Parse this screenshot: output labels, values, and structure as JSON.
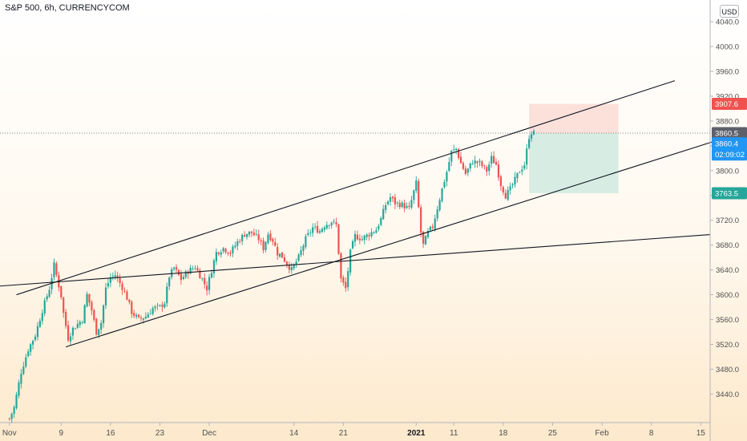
{
  "header": {
    "title": "S&P 500, 6h, CURRENCYCOM",
    "currency_button": "USD"
  },
  "colors": {
    "up": "#26a69a",
    "down": "#ef5350",
    "line": "#131722",
    "axis_text": "#4f4f4f",
    "profit_zone": "#d3ebe1",
    "loss_zone": "#fcdcd6",
    "grid": "#e0e3eb"
  },
  "chart_data": {
    "type": "candlestick",
    "symbol": "S&P 500",
    "interval": "6h",
    "source": "CURRENCYCOM",
    "x_axis": {
      "unit": "bar_index",
      "tick_labels": [
        {
          "bar": 0,
          "label": "Nov"
        },
        {
          "bar": 22,
          "label": "9"
        },
        {
          "bar": 43,
          "label": "16"
        },
        {
          "bar": 64,
          "label": "23"
        },
        {
          "bar": 85,
          "label": "Dec"
        },
        {
          "bar": 121,
          "label": "14"
        },
        {
          "bar": 142,
          "label": "21"
        },
        {
          "bar": 173,
          "label": "2021"
        },
        {
          "bar": 189,
          "label": "11"
        },
        {
          "bar": 210,
          "label": "18"
        },
        {
          "bar": 231,
          "label": "25"
        },
        {
          "bar": 252,
          "label": "Feb"
        },
        {
          "bar": 273,
          "label": "8"
        },
        {
          "bar": 294,
          "label": "15"
        }
      ],
      "range": [
        -4,
        298
      ]
    },
    "y_axis": {
      "range": [
        3394,
        4075
      ],
      "ticks": [
        3440,
        3480,
        3520,
        3560,
        3600,
        3640,
        3680,
        3720,
        3760,
        3800,
        3840,
        3880,
        3920,
        3960,
        4000,
        4040
      ],
      "tick_labels": [
        "3440.0",
        "3480.0",
        "3520.0",
        "3560.0",
        "3600.0",
        "3640.0",
        "3680.0",
        "3720.0",
        "3760.0",
        "3800.0",
        "3840.0",
        "3880.0",
        "3920.0",
        "3960.0",
        "4000.0",
        "4040.0"
      ]
    },
    "price_tags": [
      {
        "label": "3907.6",
        "value": 3907.6,
        "color": "#ef5350"
      },
      {
        "label": "3860.5",
        "value": 3860.5,
        "color": "#5d606b"
      },
      {
        "label": "3860.4",
        "value": 3844,
        "color": "#2196f3"
      },
      {
        "label": "02:09:02",
        "value": 3826,
        "color": "#2196f3"
      },
      {
        "label": "3763.5",
        "value": 3763.5,
        "color": "#26a69a"
      }
    ],
    "current_price": 3860.5,
    "position": {
      "entry": 3860.5,
      "stop": 3907.6,
      "target": 3763.5,
      "start_bar": 221,
      "end_bar": 259
    },
    "trend_lines": [
      {
        "name": "channel-upper",
        "points": [
          [
            3,
            3600
          ],
          [
            283,
            3945
          ]
        ]
      },
      {
        "name": "channel-lower",
        "points": [
          [
            24,
            3516
          ],
          [
            302,
            3850
          ]
        ]
      },
      {
        "name": "support-line",
        "points": [
          [
            -4,
            3614
          ],
          [
            298,
            3697
          ]
        ]
      }
    ],
    "anchors": [
      [
        0,
        3400
      ],
      [
        2,
        3418
      ],
      [
        5,
        3476
      ],
      [
        8,
        3512
      ],
      [
        11,
        3535
      ],
      [
        14,
        3575
      ],
      [
        17,
        3610
      ],
      [
        19,
        3648
      ],
      [
        22,
        3598
      ],
      [
        23,
        3570
      ],
      [
        25,
        3530
      ],
      [
        27,
        3545
      ],
      [
        31,
        3560
      ],
      [
        33,
        3600
      ],
      [
        35,
        3575
      ],
      [
        37,
        3540
      ],
      [
        39,
        3555
      ],
      [
        41,
        3610
      ],
      [
        43,
        3628
      ],
      [
        45,
        3632
      ],
      [
        48,
        3612
      ],
      [
        50,
        3595
      ],
      [
        52,
        3572
      ],
      [
        55,
        3560
      ],
      [
        58,
        3565
      ],
      [
        61,
        3578
      ],
      [
        64,
        3580
      ],
      [
        66,
        3588
      ],
      [
        68,
        3630
      ],
      [
        70,
        3643
      ],
      [
        73,
        3625
      ],
      [
        76,
        3638
      ],
      [
        79,
        3645
      ],
      [
        82,
        3625
      ],
      [
        84,
        3610
      ],
      [
        86,
        3640
      ],
      [
        88,
        3668
      ],
      [
        91,
        3675
      ],
      [
        94,
        3668
      ],
      [
        97,
        3685
      ],
      [
        100,
        3698
      ],
      [
        103,
        3700
      ],
      [
        106,
        3690
      ],
      [
        108,
        3675
      ],
      [
        110,
        3698
      ],
      [
        112,
        3688
      ],
      [
        114,
        3667
      ],
      [
        116,
        3662
      ],
      [
        118,
        3650
      ],
      [
        120,
        3640
      ],
      [
        123,
        3660
      ],
      [
        126,
        3690
      ],
      [
        129,
        3708
      ],
      [
        132,
        3703
      ],
      [
        134,
        3712
      ],
      [
        137,
        3718
      ],
      [
        139,
        3712
      ],
      [
        141,
        3625
      ],
      [
        143,
        3610
      ],
      [
        145,
        3668
      ],
      [
        147,
        3695
      ],
      [
        150,
        3690
      ],
      [
        153,
        3698
      ],
      [
        156,
        3705
      ],
      [
        158,
        3722
      ],
      [
        160,
        3745
      ],
      [
        162,
        3757
      ],
      [
        164,
        3748
      ],
      [
        167,
        3745
      ],
      [
        170,
        3738
      ],
      [
        173,
        3780
      ],
      [
        175,
        3700
      ],
      [
        176,
        3680
      ],
      [
        178,
        3700
      ],
      [
        180,
        3710
      ],
      [
        182,
        3740
      ],
      [
        184,
        3770
      ],
      [
        186,
        3798
      ],
      [
        188,
        3830
      ],
      [
        190,
        3835
      ],
      [
        192,
        3812
      ],
      [
        194,
        3795
      ],
      [
        197,
        3815
      ],
      [
        200,
        3812
      ],
      [
        203,
        3800
      ],
      [
        205,
        3820
      ],
      [
        207,
        3810
      ],
      [
        209,
        3778
      ],
      [
        211,
        3760
      ],
      [
        213,
        3770
      ],
      [
        215,
        3785
      ],
      [
        217,
        3800
      ],
      [
        219,
        3810
      ],
      [
        221,
        3855
      ],
      [
        222,
        3862
      ],
      [
        223,
        3860
      ]
    ],
    "candles_generated_from": "anchors (hourly interpolation)"
  }
}
